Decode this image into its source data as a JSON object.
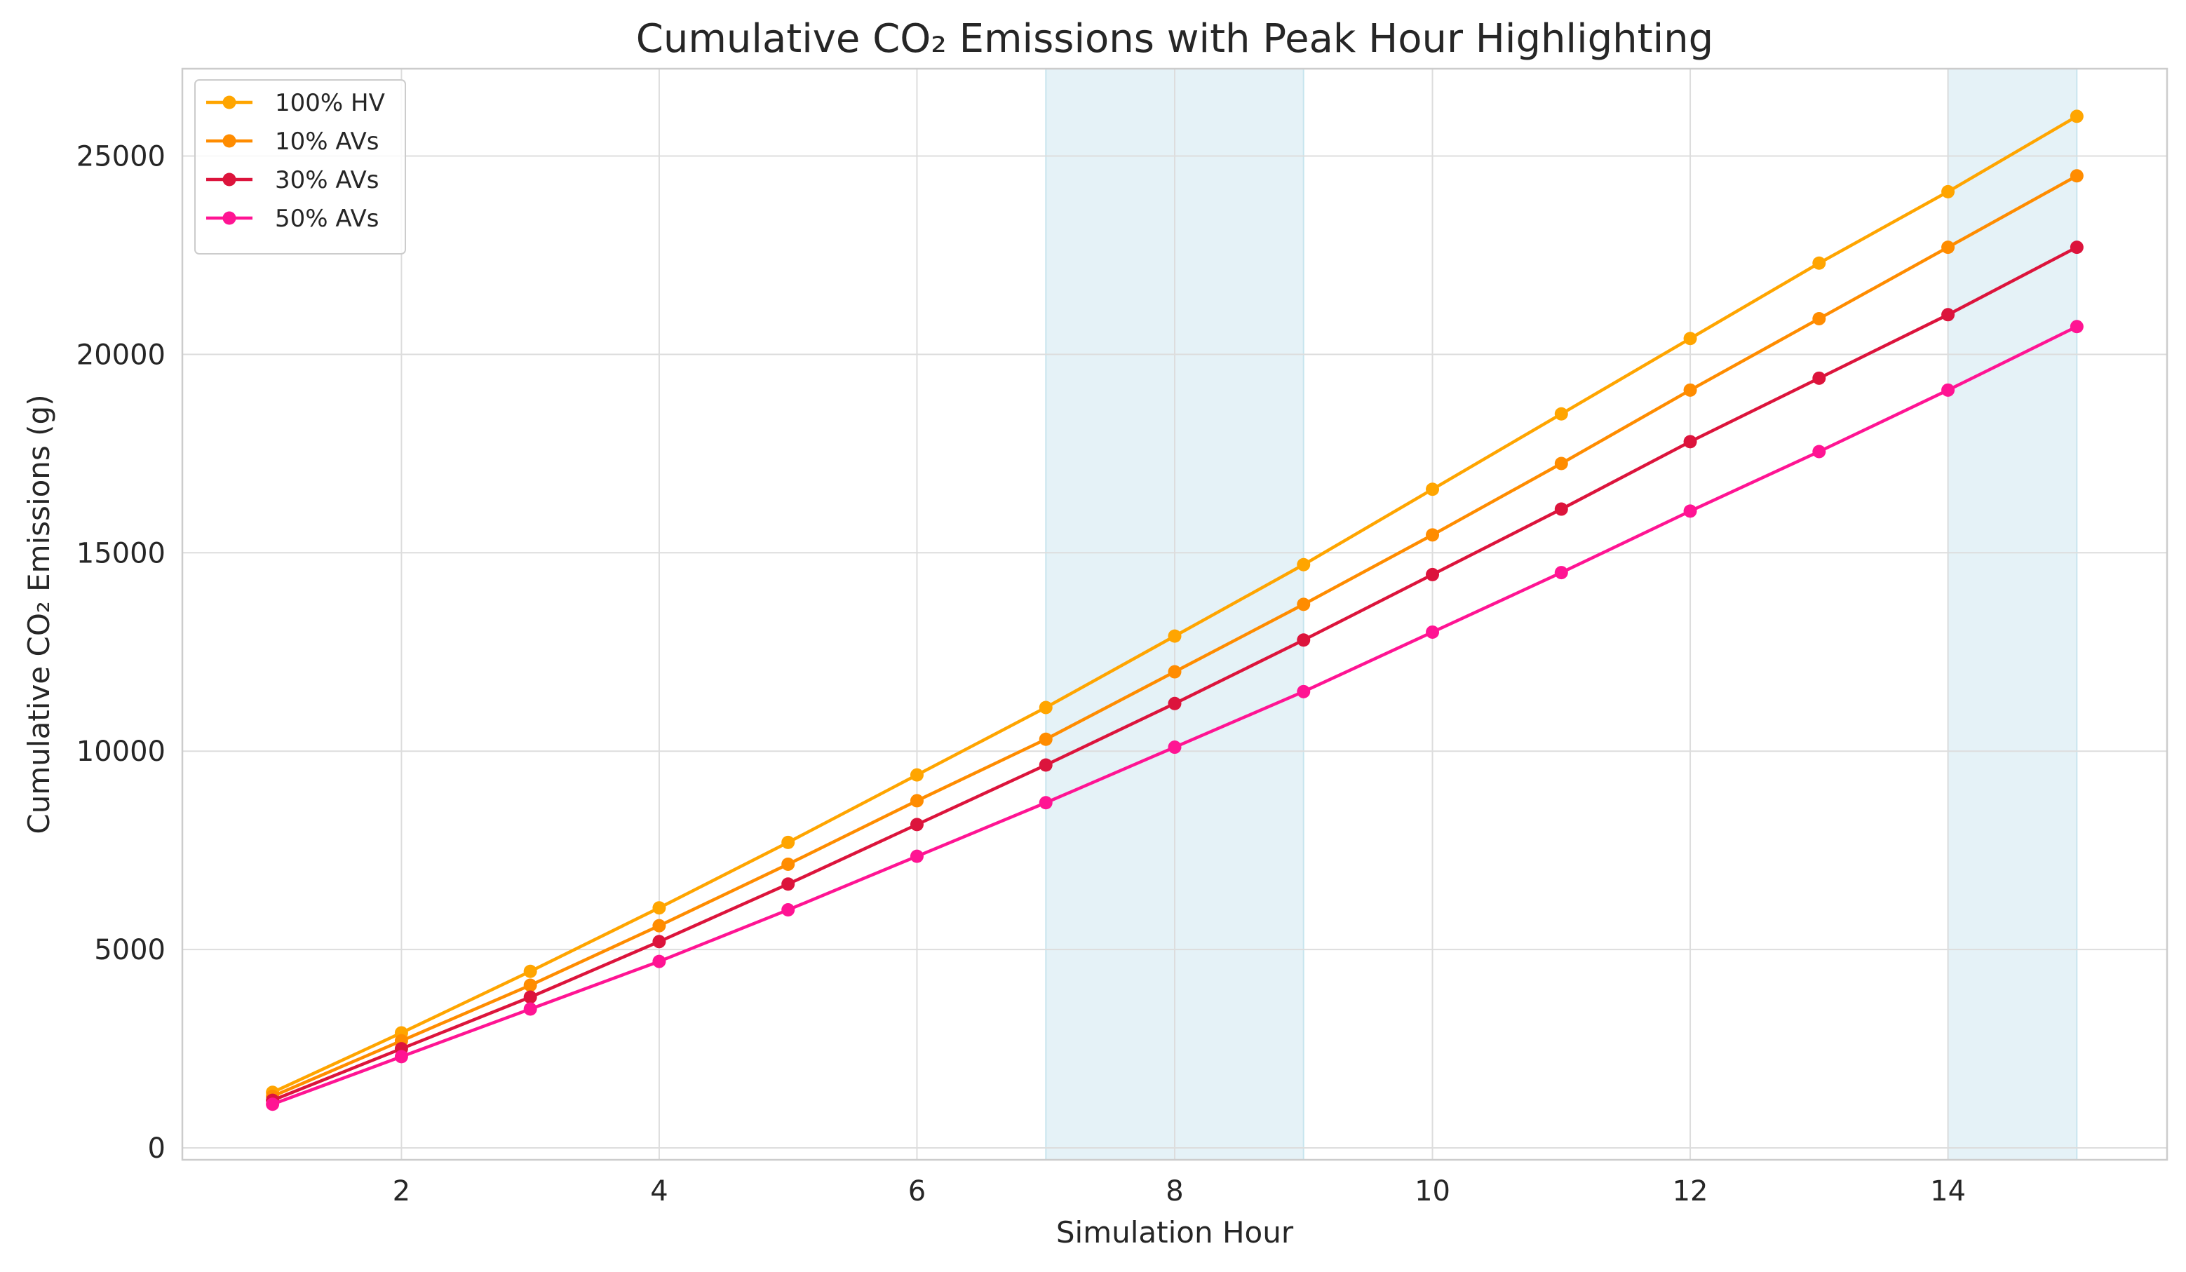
{
  "chart_data": {
    "type": "line",
    "title": "Cumulative CO₂ Emissions with Peak Hour Highlighting",
    "xlabel": "Simulation Hour",
    "ylabel": "Cumulative CO₂ Emissions (g)",
    "xlim": [
      0.3,
      15.7
    ],
    "ylim": [
      -300,
      27200
    ],
    "xticks": [
      2,
      4,
      6,
      8,
      10,
      12,
      14
    ],
    "yticks": [
      0,
      5000,
      10000,
      15000,
      20000,
      25000
    ],
    "grid": true,
    "legend_position": "top-left",
    "x": [
      1,
      2,
      3,
      4,
      5,
      6,
      7,
      8,
      9,
      10,
      11,
      12,
      13,
      14,
      15
    ],
    "highlight_spans": [
      {
        "label": "peak-hours-morning",
        "x_start": 7,
        "x_end": 9,
        "color": "#add8e6"
      },
      {
        "label": "peak-hours-evening",
        "x_start": 14,
        "x_end": 15,
        "color": "#add8e6"
      }
    ],
    "series": [
      {
        "name": "100% HV",
        "color": "#ffa500",
        "values": [
          1400,
          2900,
          4450,
          6050,
          7700,
          9400,
          11100,
          12900,
          14700,
          16600,
          18500,
          20400,
          22300,
          24100,
          26000
        ]
      },
      {
        "name": "10% AVs",
        "color": "#ff8c00",
        "values": [
          1300,
          2700,
          4100,
          5600,
          7150,
          8750,
          10300,
          12000,
          13700,
          15450,
          17250,
          19100,
          20900,
          22700,
          24500
        ]
      },
      {
        "name": "30% AVs",
        "color": "#dc143c",
        "values": [
          1200,
          2500,
          3800,
          5200,
          6650,
          8150,
          9650,
          11200,
          12800,
          14450,
          16100,
          17800,
          19400,
          21000,
          22700
        ]
      },
      {
        "name": "50% AVs",
        "color": "#ff1493",
        "values": [
          1100,
          2300,
          3500,
          4700,
          6000,
          7350,
          8700,
          10100,
          11500,
          13000,
          14500,
          16050,
          17550,
          19100,
          20700
        ]
      }
    ]
  }
}
